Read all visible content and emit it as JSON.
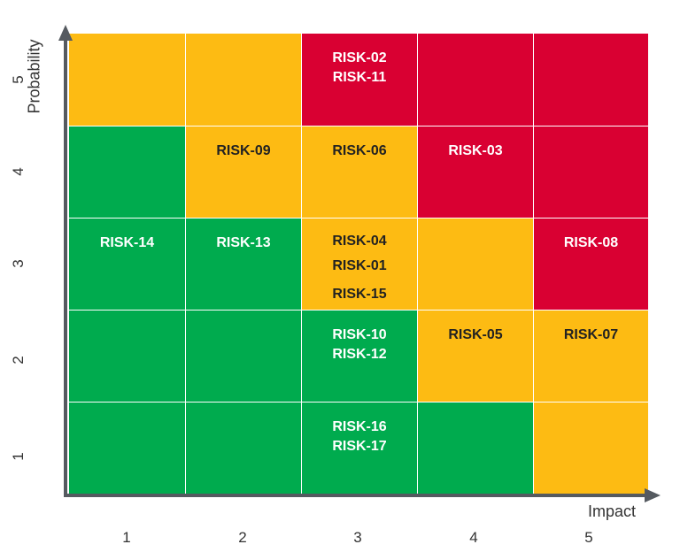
{
  "chart_data": {
    "type": "heatmap",
    "xlabel": "Impact",
    "ylabel": "Probability",
    "x_ticks": [
      "1",
      "2",
      "3",
      "4",
      "5"
    ],
    "y_ticks": [
      "5",
      "4",
      "3",
      "2",
      "1"
    ],
    "colors": {
      "green": "#00AB4E",
      "amber": "#FDBB13",
      "red": "#D90032",
      "grid_line": "#ffffff",
      "axis": "#555a60"
    },
    "cells": [
      {
        "impact": 1,
        "probability": 5,
        "level": "amber",
        "risks": []
      },
      {
        "impact": 2,
        "probability": 5,
        "level": "amber",
        "risks": []
      },
      {
        "impact": 3,
        "probability": 5,
        "level": "red",
        "risks": [
          "RISK-02",
          "RISK-11"
        ]
      },
      {
        "impact": 4,
        "probability": 5,
        "level": "red",
        "risks": []
      },
      {
        "impact": 5,
        "probability": 5,
        "level": "red",
        "risks": []
      },
      {
        "impact": 1,
        "probability": 4,
        "level": "green",
        "risks": []
      },
      {
        "impact": 2,
        "probability": 4,
        "level": "amber",
        "risks": [
          "RISK-09"
        ]
      },
      {
        "impact": 3,
        "probability": 4,
        "level": "amber",
        "risks": [
          "RISK-06"
        ]
      },
      {
        "impact": 4,
        "probability": 4,
        "level": "red",
        "risks": [
          "RISK-03"
        ]
      },
      {
        "impact": 5,
        "probability": 4,
        "level": "red",
        "risks": []
      },
      {
        "impact": 1,
        "probability": 3,
        "level": "green",
        "risks": [
          "RISK-14"
        ]
      },
      {
        "impact": 2,
        "probability": 3,
        "level": "green",
        "risks": [
          "RISK-13"
        ]
      },
      {
        "impact": 3,
        "probability": 3,
        "level": "amber",
        "risks": [
          "RISK-04",
          "RISK-01",
          "RISK-15"
        ]
      },
      {
        "impact": 4,
        "probability": 3,
        "level": "amber",
        "risks": []
      },
      {
        "impact": 5,
        "probability": 3,
        "level": "red",
        "risks": [
          "RISK-08"
        ]
      },
      {
        "impact": 1,
        "probability": 2,
        "level": "green",
        "risks": []
      },
      {
        "impact": 2,
        "probability": 2,
        "level": "green",
        "risks": []
      },
      {
        "impact": 3,
        "probability": 2,
        "level": "green",
        "risks": [
          "RISK-10",
          "RISK-12"
        ]
      },
      {
        "impact": 4,
        "probability": 2,
        "level": "amber",
        "risks": [
          "RISK-05"
        ]
      },
      {
        "impact": 5,
        "probability": 2,
        "level": "amber",
        "risks": [
          "RISK-07"
        ]
      },
      {
        "impact": 1,
        "probability": 1,
        "level": "green",
        "risks": []
      },
      {
        "impact": 2,
        "probability": 1,
        "level": "green",
        "risks": []
      },
      {
        "impact": 3,
        "probability": 1,
        "level": "green",
        "risks": [
          "RISK-16",
          "RISK-17"
        ]
      },
      {
        "impact": 4,
        "probability": 1,
        "level": "green",
        "risks": []
      },
      {
        "impact": 5,
        "probability": 1,
        "level": "amber",
        "risks": []
      }
    ]
  }
}
